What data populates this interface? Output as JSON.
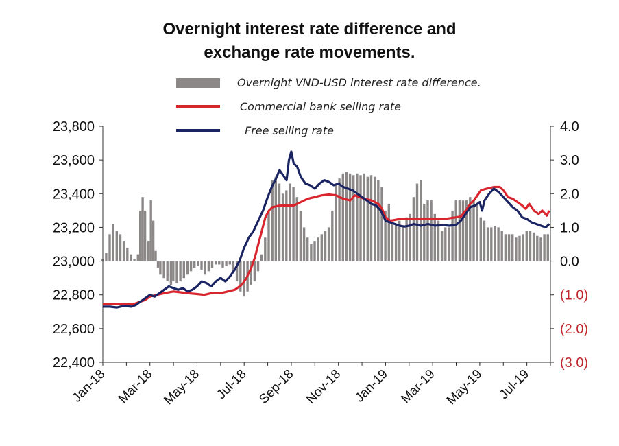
{
  "chart_data": {
    "type": "bar+line",
    "title_lines": [
      "Overnight interest rate difference and",
      "exchange rate movements."
    ],
    "left_axis": {
      "ticks": [
        "23,800",
        "23,600",
        "23,400",
        "23,200",
        "23,000",
        "22,800",
        "22,600",
        "22,400"
      ],
      "values": [
        23800,
        23600,
        23400,
        23200,
        23000,
        22800,
        22600,
        22400
      ],
      "ylim": [
        22400,
        23800
      ]
    },
    "right_axis": {
      "ticks": [
        "4.0",
        "3.0",
        "2.0",
        "1.0",
        "0.0",
        "(1.0)",
        "(2.0)",
        "(3.0)"
      ],
      "values": [
        4,
        3,
        2,
        1,
        0,
        -1,
        -2,
        -3
      ],
      "ylim": [
        -3,
        4
      ],
      "negative_color": "#c0272d",
      "positive_color": "#111111"
    },
    "x_axis": {
      "ticks": [
        "Jan-18",
        "Mar-18",
        "May-18",
        "Jul-18",
        "Sep-18",
        "Nov-18",
        "Jan-19",
        "Mar-19",
        "May-19",
        "Jul-19"
      ],
      "range_months": [
        0,
        19
      ]
    },
    "legend": [
      {
        "label": "Overnight VND-USD interest rate difference.",
        "color": "#8c8888",
        "kind": "bar"
      },
      {
        "label": "Commercial bank selling rate",
        "color": "#d9262e",
        "kind": "line"
      },
      {
        "label": "Free selling rate",
        "color": "#1b2463",
        "kind": "line"
      }
    ],
    "series": [
      {
        "key": "diff",
        "axis": "right",
        "points": [
          [
            0.0,
            0.05
          ],
          [
            0.15,
            0.25
          ],
          [
            0.3,
            0.8
          ],
          [
            0.45,
            1.1
          ],
          [
            0.6,
            0.9
          ],
          [
            0.75,
            0.8
          ],
          [
            0.9,
            0.6
          ],
          [
            1.05,
            0.4
          ],
          [
            1.2,
            0.2
          ],
          [
            1.35,
            0.05
          ],
          [
            1.5,
            0.2
          ],
          [
            1.6,
            1.5
          ],
          [
            1.7,
            1.9
          ],
          [
            1.8,
            1.5
          ],
          [
            1.95,
            0.6
          ],
          [
            2.05,
            1.8
          ],
          [
            2.15,
            1.2
          ],
          [
            2.25,
            0.3
          ],
          [
            2.35,
            -0.2
          ],
          [
            2.45,
            -0.4
          ],
          [
            2.6,
            -0.5
          ],
          [
            2.75,
            -0.6
          ],
          [
            2.9,
            -0.7
          ],
          [
            3.0,
            -0.6
          ],
          [
            3.15,
            -0.65
          ],
          [
            3.3,
            -0.6
          ],
          [
            3.45,
            -0.5
          ],
          [
            3.6,
            -0.4
          ],
          [
            3.75,
            -0.3
          ],
          [
            3.9,
            -0.2
          ],
          [
            4.05,
            -0.15
          ],
          [
            4.2,
            -0.25
          ],
          [
            4.35,
            -0.4
          ],
          [
            4.5,
            -0.3
          ],
          [
            4.65,
            -0.2
          ],
          [
            4.8,
            -0.1
          ],
          [
            4.95,
            -0.1
          ],
          [
            5.1,
            -0.2
          ],
          [
            5.25,
            -0.15
          ],
          [
            5.4,
            -0.1
          ],
          [
            5.55,
            -0.3
          ],
          [
            5.7,
            -0.6
          ],
          [
            5.85,
            -0.9
          ],
          [
            6.0,
            -1.05
          ],
          [
            6.15,
            -0.9
          ],
          [
            6.3,
            -0.7
          ],
          [
            6.45,
            -0.6
          ],
          [
            6.6,
            -0.3
          ],
          [
            6.75,
            0.2
          ],
          [
            6.9,
            0.7
          ],
          [
            7.05,
            1.5
          ],
          [
            7.2,
            2.4
          ],
          [
            7.35,
            2.5
          ],
          [
            7.5,
            2.3
          ],
          [
            7.65,
            2.0
          ],
          [
            7.8,
            2.1
          ],
          [
            7.95,
            2.3
          ],
          [
            8.1,
            2.2
          ],
          [
            8.25,
            1.9
          ],
          [
            8.4,
            1.5
          ],
          [
            8.55,
            1.0
          ],
          [
            8.7,
            0.7
          ],
          [
            8.85,
            0.5
          ],
          [
            9.0,
            0.6
          ],
          [
            9.15,
            0.7
          ],
          [
            9.3,
            0.8
          ],
          [
            9.45,
            0.9
          ],
          [
            9.6,
            1.0
          ],
          [
            9.75,
            1.5
          ],
          [
            9.9,
            2.3
          ],
          [
            10.05,
            2.45
          ],
          [
            10.2,
            2.6
          ],
          [
            10.35,
            2.65
          ],
          [
            10.5,
            2.6
          ],
          [
            10.65,
            2.55
          ],
          [
            10.8,
            2.6
          ],
          [
            10.95,
            2.55
          ],
          [
            11.1,
            2.6
          ],
          [
            11.25,
            2.5
          ],
          [
            11.4,
            2.55
          ],
          [
            11.55,
            2.5
          ],
          [
            11.7,
            2.4
          ],
          [
            11.85,
            2.2
          ],
          [
            12.0,
            1.5
          ],
          [
            12.15,
            1.7
          ],
          [
            12.3,
            1.1
          ],
          [
            12.45,
            1.1
          ],
          [
            12.6,
            1.2
          ],
          [
            12.75,
            1.0
          ],
          [
            12.9,
            1.3
          ],
          [
            13.05,
            1.4
          ],
          [
            13.2,
            1.9
          ],
          [
            13.35,
            2.3
          ],
          [
            13.5,
            2.4
          ],
          [
            13.65,
            1.7
          ],
          [
            13.8,
            1.8
          ],
          [
            13.95,
            1.8
          ],
          [
            14.1,
            1.4
          ],
          [
            14.25,
            1.2
          ],
          [
            14.4,
            0.9
          ],
          [
            14.55,
            1.0
          ],
          [
            14.7,
            1.0
          ],
          [
            14.85,
            1.5
          ],
          [
            15.0,
            1.8
          ],
          [
            15.15,
            1.8
          ],
          [
            15.3,
            1.8
          ],
          [
            15.45,
            1.8
          ],
          [
            15.6,
            1.9
          ],
          [
            15.75,
            1.8
          ],
          [
            15.9,
            1.7
          ],
          [
            16.05,
            1.3
          ],
          [
            16.2,
            1.2
          ],
          [
            16.35,
            1.0
          ],
          [
            16.5,
            1.0
          ],
          [
            16.65,
            1.05
          ],
          [
            16.8,
            1.0
          ],
          [
            16.95,
            0.9
          ],
          [
            17.1,
            0.8
          ],
          [
            17.25,
            0.8
          ],
          [
            17.4,
            0.8
          ],
          [
            17.55,
            0.7
          ],
          [
            17.7,
            0.75
          ],
          [
            17.85,
            0.8
          ],
          [
            18.0,
            0.9
          ],
          [
            18.15,
            0.9
          ],
          [
            18.3,
            0.85
          ],
          [
            18.45,
            0.75
          ],
          [
            18.6,
            0.7
          ],
          [
            18.75,
            0.8
          ],
          [
            18.9,
            0.8
          ]
        ]
      },
      {
        "key": "bank",
        "axis": "left",
        "points": [
          [
            0,
            22745
          ],
          [
            0.5,
            22745
          ],
          [
            1.0,
            22745
          ],
          [
            1.3,
            22745
          ],
          [
            1.5,
            22755
          ],
          [
            1.8,
            22770
          ],
          [
            2.0,
            22790
          ],
          [
            2.3,
            22800
          ],
          [
            2.6,
            22810
          ],
          [
            3.0,
            22820
          ],
          [
            3.3,
            22815
          ],
          [
            3.6,
            22810
          ],
          [
            4.0,
            22805
          ],
          [
            4.3,
            22800
          ],
          [
            4.6,
            22810
          ],
          [
            5.0,
            22810
          ],
          [
            5.3,
            22820
          ],
          [
            5.6,
            22830
          ],
          [
            5.9,
            22860
          ],
          [
            6.1,
            22900
          ],
          [
            6.3,
            22960
          ],
          [
            6.45,
            23020
          ],
          [
            6.6,
            23100
          ],
          [
            6.75,
            23180
          ],
          [
            6.9,
            23260
          ],
          [
            7.05,
            23300
          ],
          [
            7.2,
            23320
          ],
          [
            7.5,
            23330
          ],
          [
            7.8,
            23330
          ],
          [
            8.1,
            23330
          ],
          [
            8.4,
            23350
          ],
          [
            8.7,
            23370
          ],
          [
            9.0,
            23380
          ],
          [
            9.3,
            23390
          ],
          [
            9.6,
            23395
          ],
          [
            9.9,
            23390
          ],
          [
            10.2,
            23370
          ],
          [
            10.5,
            23360
          ],
          [
            10.7,
            23390
          ],
          [
            10.9,
            23380
          ],
          [
            11.1,
            23370
          ],
          [
            11.4,
            23360
          ],
          [
            11.7,
            23340
          ],
          [
            11.85,
            23310
          ],
          [
            12.0,
            23260
          ],
          [
            12.2,
            23240
          ],
          [
            12.4,
            23245
          ],
          [
            12.6,
            23250
          ],
          [
            13.0,
            23250
          ],
          [
            13.5,
            23250
          ],
          [
            14.0,
            23250
          ],
          [
            14.5,
            23250
          ],
          [
            15.0,
            23260
          ],
          [
            15.2,
            23265
          ],
          [
            15.4,
            23300
          ],
          [
            15.6,
            23340
          ],
          [
            15.75,
            23360
          ],
          [
            15.9,
            23390
          ],
          [
            16.05,
            23420
          ],
          [
            16.3,
            23430
          ],
          [
            16.6,
            23440
          ],
          [
            16.85,
            23440
          ],
          [
            17.0,
            23420
          ],
          [
            17.2,
            23380
          ],
          [
            17.4,
            23370
          ],
          [
            17.6,
            23350
          ],
          [
            17.8,
            23330
          ],
          [
            17.95,
            23310
          ],
          [
            18.1,
            23340
          ],
          [
            18.3,
            23300
          ],
          [
            18.5,
            23280
          ],
          [
            18.65,
            23300
          ],
          [
            18.85,
            23270
          ],
          [
            18.95,
            23300
          ]
        ]
      },
      {
        "key": "free",
        "axis": "left",
        "points": [
          [
            0,
            22730
          ],
          [
            0.3,
            22730
          ],
          [
            0.6,
            22725
          ],
          [
            0.9,
            22735
          ],
          [
            1.2,
            22730
          ],
          [
            1.4,
            22740
          ],
          [
            1.6,
            22760
          ],
          [
            1.8,
            22780
          ],
          [
            2.0,
            22800
          ],
          [
            2.2,
            22790
          ],
          [
            2.4,
            22810
          ],
          [
            2.6,
            22830
          ],
          [
            2.8,
            22850
          ],
          [
            3.0,
            22840
          ],
          [
            3.2,
            22830
          ],
          [
            3.4,
            22840
          ],
          [
            3.6,
            22820
          ],
          [
            3.8,
            22830
          ],
          [
            4.0,
            22850
          ],
          [
            4.2,
            22880
          ],
          [
            4.4,
            22870
          ],
          [
            4.6,
            22850
          ],
          [
            4.8,
            22880
          ],
          [
            5.0,
            22900
          ],
          [
            5.2,
            22880
          ],
          [
            5.4,
            22910
          ],
          [
            5.6,
            22950
          ],
          [
            5.8,
            23000
          ],
          [
            6.0,
            23080
          ],
          [
            6.2,
            23140
          ],
          [
            6.4,
            23180
          ],
          [
            6.6,
            23240
          ],
          [
            6.8,
            23300
          ],
          [
            7.0,
            23380
          ],
          [
            7.2,
            23450
          ],
          [
            7.35,
            23490
          ],
          [
            7.5,
            23540
          ],
          [
            7.65,
            23510
          ],
          [
            7.8,
            23480
          ],
          [
            7.9,
            23600
          ],
          [
            8.0,
            23650
          ],
          [
            8.1,
            23580
          ],
          [
            8.25,
            23560
          ],
          [
            8.4,
            23500
          ],
          [
            8.6,
            23460
          ],
          [
            8.8,
            23450
          ],
          [
            9.0,
            23430
          ],
          [
            9.2,
            23460
          ],
          [
            9.4,
            23480
          ],
          [
            9.6,
            23470
          ],
          [
            9.8,
            23450
          ],
          [
            10.0,
            23460
          ],
          [
            10.2,
            23440
          ],
          [
            10.4,
            23430
          ],
          [
            10.6,
            23420
          ],
          [
            10.8,
            23400
          ],
          [
            11.0,
            23380
          ],
          [
            11.2,
            23360
          ],
          [
            11.4,
            23340
          ],
          [
            11.6,
            23330
          ],
          [
            11.8,
            23300
          ],
          [
            12.0,
            23240
          ],
          [
            12.2,
            23230
          ],
          [
            12.4,
            23220
          ],
          [
            12.6,
            23210
          ],
          [
            12.8,
            23205
          ],
          [
            13.0,
            23210
          ],
          [
            13.2,
            23220
          ],
          [
            13.5,
            23210
          ],
          [
            13.8,
            23220
          ],
          [
            14.1,
            23210
          ],
          [
            14.4,
            23215
          ],
          [
            14.7,
            23210
          ],
          [
            15.0,
            23215
          ],
          [
            15.2,
            23240
          ],
          [
            15.4,
            23280
          ],
          [
            15.6,
            23320
          ],
          [
            15.8,
            23330
          ],
          [
            16.0,
            23350
          ],
          [
            16.1,
            23300
          ],
          [
            16.2,
            23360
          ],
          [
            16.4,
            23400
          ],
          [
            16.6,
            23430
          ],
          [
            16.8,
            23410
          ],
          [
            17.0,
            23380
          ],
          [
            17.2,
            23350
          ],
          [
            17.4,
            23320
          ],
          [
            17.6,
            23300
          ],
          [
            17.8,
            23260
          ],
          [
            18.0,
            23250
          ],
          [
            18.2,
            23230
          ],
          [
            18.4,
            23220
          ],
          [
            18.6,
            23210
          ],
          [
            18.8,
            23200
          ],
          [
            18.95,
            23220
          ]
        ]
      }
    ]
  }
}
